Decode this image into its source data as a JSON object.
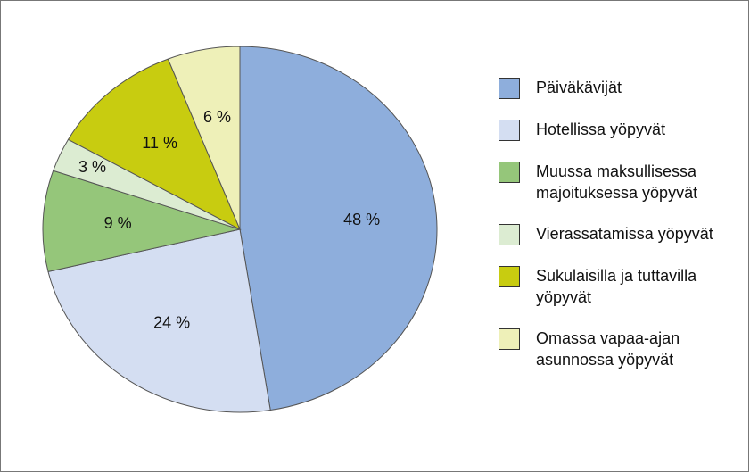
{
  "chart_data": {
    "type": "pie",
    "categories": [
      "Päiväkävijät",
      "Hotellissa yöpyvät",
      "Muussa maksullisessa majoituksessa yöpyvät",
      "Vierassatamissa yöpyvät",
      "Sukulaisilla ja tuttavilla yöpyvät",
      "Omassa vapaa-ajan asunnossa yöpyvät"
    ],
    "values": [
      48,
      24,
      9,
      3,
      11,
      6
    ],
    "value_labels": [
      "48 %",
      "24 %",
      "9 %",
      "3 %",
      "11 %",
      "6 %"
    ],
    "colors": [
      "#8eaedc",
      "#d4def2",
      "#95c67a",
      "#dcecd2",
      "#c8cc10",
      "#eef0b8"
    ],
    "legend": "right"
  }
}
